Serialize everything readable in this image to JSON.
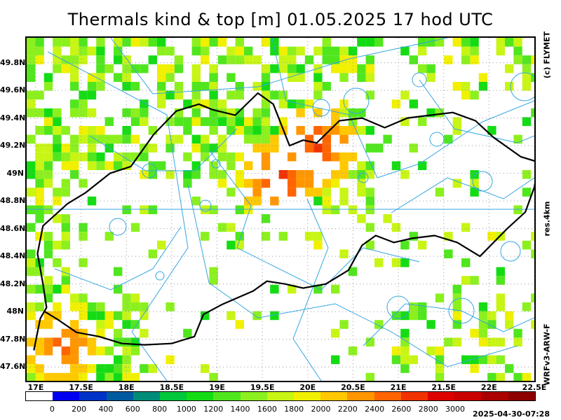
{
  "title": "Thermals kind & top [m]  01.05.2025 17 hod UTC",
  "copyright": "(c) FLYMET",
  "resolution": "res.4km",
  "model": "WRFv3-ARW-F",
  "timestamp": "2025-04-30-07:28",
  "map": {
    "lon_range": [
      16.9,
      22.5
    ],
    "lat_range": [
      47.5,
      49.98
    ],
    "lat_ticks": [
      "49.8N",
      "49.6N",
      "49.4N",
      "49.2N",
      "49N",
      "48.8N",
      "48.6N",
      "48.4N",
      "48.2N",
      "48N",
      "47.8N",
      "47.6N"
    ],
    "lat_values": [
      49.8,
      49.6,
      49.4,
      49.2,
      49.0,
      48.8,
      48.6,
      48.4,
      48.2,
      48.0,
      47.8,
      47.6
    ],
    "lon_ticks": [
      "17E",
      "17.5E",
      "18E",
      "18.5E",
      "19E",
      "19.5E",
      "20E",
      "20.5E",
      "21E",
      "21.5E",
      "22E",
      "22.5E"
    ],
    "lon_values": [
      17.0,
      17.5,
      18.0,
      18.5,
      19.0,
      19.5,
      20.0,
      20.5,
      21.0,
      21.5,
      22.0,
      22.5
    ],
    "colors": {
      "border": "#000000",
      "airspace": "#35a6e0",
      "grid": "#9a9a9a"
    }
  },
  "legend": {
    "colors": [
      "#ffffff",
      "#0000f0",
      "#0032c8",
      "#005aa0",
      "#008c78",
      "#00c83c",
      "#14dc14",
      "#50e61e",
      "#8cf01e",
      "#c8f514",
      "#f0f000",
      "#ffc800",
      "#ff9600",
      "#ff6400",
      "#f03200",
      "#dc0000",
      "#c80000",
      "#aa0000",
      "#8c0000"
    ],
    "ticks": [
      "0",
      "200",
      "400",
      "600",
      "800",
      "1000",
      "1200",
      "1400",
      "1600",
      "1800",
      "2000",
      "2200",
      "2400",
      "2600",
      "2800",
      "3000"
    ]
  },
  "chart_data": {
    "type": "heatmap",
    "title": "Thermals kind & top [m]  01.05.2025 17 hod UTC",
    "unit": "m",
    "x_label": "",
    "y_label": "",
    "legend_values": [
      0,
      200,
      400,
      600,
      800,
      1000,
      1200,
      1400,
      1600,
      1800,
      2000,
      2200,
      2400,
      2600,
      2800,
      3000
    ],
    "hotspots": [
      {
        "lon": 20.1,
        "lat": 49.2,
        "top_m": 2600
      },
      {
        "lon": 19.7,
        "lat": 48.96,
        "top_m": 2600
      },
      {
        "lon": 17.3,
        "lat": 47.75,
        "top_m": 2500
      }
    ]
  }
}
